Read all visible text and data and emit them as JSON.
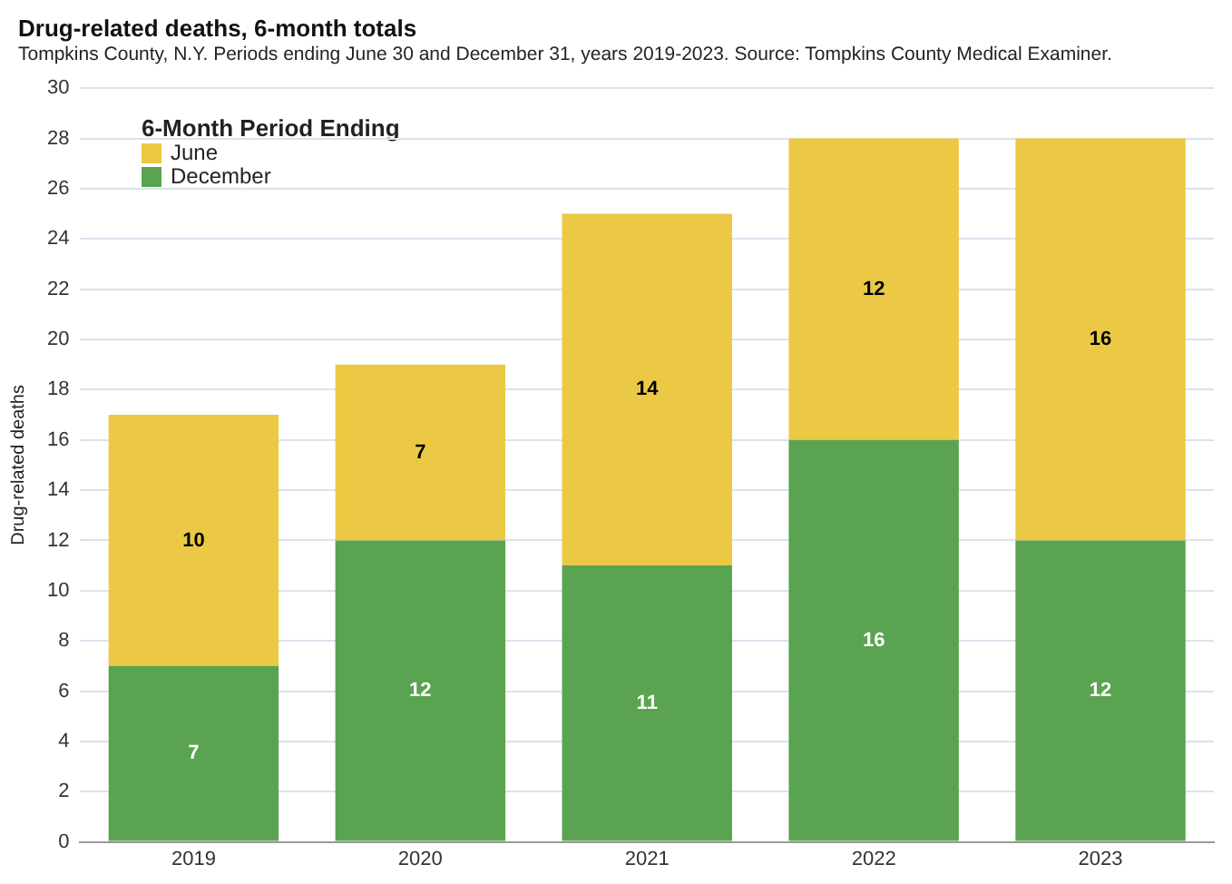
{
  "chart_data": {
    "type": "bar",
    "title": "Drug-related deaths, 6-month totals",
    "subtitle": "Tompkins County, N.Y. Periods ending June 30 and December 31, years 2019-2023. Source: Tompkins County Medical Examiner.",
    "ylabel": "Drug-related deaths",
    "legend_title": "6-Month Period Ending",
    "categories": [
      "2019",
      "2020",
      "2021",
      "2022",
      "2023"
    ],
    "series": [
      {
        "name": "December",
        "color": "#5aa350",
        "values": [
          7,
          12,
          11,
          16,
          12
        ]
      },
      {
        "name": "June",
        "color": "#ebc944",
        "values": [
          10,
          7,
          14,
          12,
          16
        ]
      }
    ],
    "stacked": true,
    "ylim": [
      0,
      30
    ],
    "yticks": [
      0,
      2,
      4,
      6,
      8,
      10,
      12,
      14,
      16,
      18,
      20,
      22,
      24,
      26,
      28,
      30
    ],
    "grid": "y",
    "legend": "top left",
    "data_labels": true
  }
}
